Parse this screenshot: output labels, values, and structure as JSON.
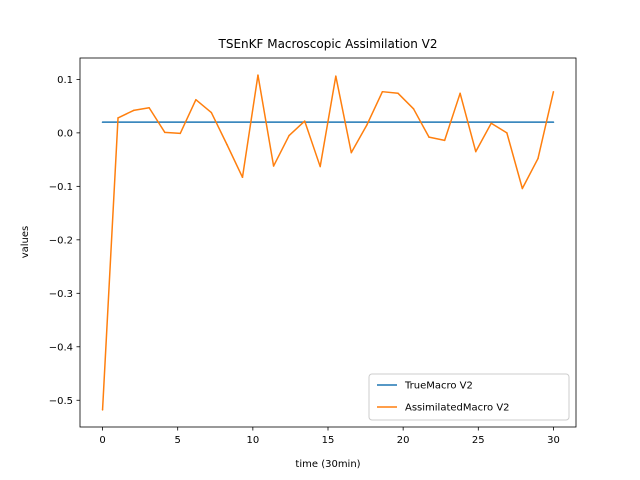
{
  "chart_data": {
    "type": "line",
    "title": "TSEnKF Macroscopic Assimilation V2",
    "xlabel": "time (30min)",
    "ylabel": "values",
    "xlim": [
      -1.5,
      31.5
    ],
    "ylim": [
      -0.55,
      0.14
    ],
    "xticks": [
      0,
      5,
      10,
      15,
      20,
      25,
      30
    ],
    "xtick_labels": [
      "0",
      "5",
      "10",
      "15",
      "20",
      "25",
      "30"
    ],
    "yticks": [
      -0.5,
      -0.4,
      -0.3,
      -0.2,
      -0.1,
      0.0,
      0.1
    ],
    "ytick_labels": [
      "−0.5",
      "−0.4",
      "−0.3",
      "−0.2",
      "−0.1",
      "0.0",
      "0.1"
    ],
    "grid": false,
    "legend_position": "lower-right",
    "series": [
      {
        "name": "TrueMacro V2",
        "color": "#1f77b4",
        "x": [
          0,
          30
        ],
        "y": [
          0.02,
          0.02
        ]
      },
      {
        "name": "AssimilatedMacro V2",
        "color": "#ff7f0e",
        "x": [
          0,
          1.03,
          2.07,
          3.1,
          4.14,
          5.17,
          6.21,
          7.24,
          8.28,
          9.31,
          10.34,
          11.38,
          12.41,
          13.45,
          14.48,
          15.52,
          16.55,
          17.59,
          18.62,
          19.66,
          20.69,
          21.72,
          22.76,
          23.79,
          24.83,
          25.86,
          26.9,
          27.93,
          28.97,
          30
        ],
        "y": [
          -0.518,
          0.028,
          0.042,
          0.047,
          0.001,
          -0.001,
          0.062,
          0.038,
          -0.022,
          -0.083,
          0.108,
          -0.062,
          -0.005,
          0.022,
          -0.063,
          0.106,
          -0.037,
          0.015,
          0.077,
          0.074,
          0.045,
          -0.008,
          -0.014,
          0.074,
          -0.035,
          0.018,
          0.0,
          -0.104,
          -0.048,
          0.077
        ]
      }
    ]
  }
}
